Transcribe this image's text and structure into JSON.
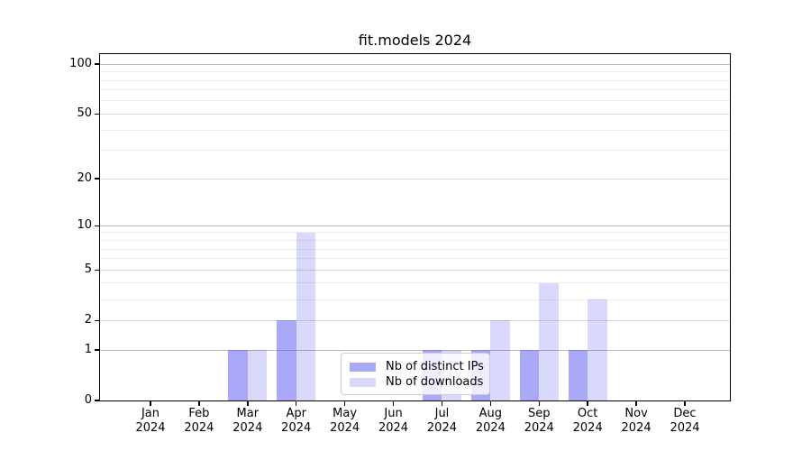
{
  "title": "fit.models 2024",
  "legend": {
    "items": [
      {
        "label": "Nb of distinct IPs",
        "series": "ips"
      },
      {
        "label": "Nb of downloads",
        "series": "downloads"
      }
    ]
  },
  "colors": {
    "ips_fill": "rgba(80,80,240,0.49)",
    "downloads_fill": "rgba(80,80,240,0.22)",
    "ips_solid": "#a9a9f8",
    "downloads_solid": "#d8d8fa",
    "grid_strong": "#b8b8b8",
    "grid_medium": "#d9d9d9",
    "grid_light": "#ececec",
    "axis": "#000000"
  },
  "chart_data": {
    "type": "bar",
    "title": "fit.models 2024",
    "categories": [
      "Jan 2024",
      "Feb 2024",
      "Mar 2024",
      "Apr 2024",
      "May 2024",
      "Jun 2024",
      "Jul 2024",
      "Aug 2024",
      "Sep 2024",
      "Oct 2024",
      "Nov 2024",
      "Dec 2024"
    ],
    "series": [
      {
        "name": "Nb of distinct IPs",
        "values": [
          0,
          0,
          1,
          2,
          0,
          0,
          1,
          1,
          1,
          1,
          0,
          0
        ]
      },
      {
        "name": "Nb of downloads",
        "values": [
          0,
          0,
          1,
          9,
          0,
          0,
          1,
          2,
          4,
          3,
          0,
          0
        ]
      }
    ],
    "xlabel": "",
    "ylabel": "",
    "y_scale": "log1p",
    "y_tick_values": [
      0,
      1,
      2,
      5,
      10,
      20,
      50,
      100
    ],
    "y_tick_labels": [
      "0",
      "1",
      "2",
      "5",
      "10",
      "20",
      "50",
      "100"
    ],
    "y_gridlines_strong": [
      1,
      10,
      100
    ],
    "y_gridlines_medium": [
      2,
      5,
      20,
      50
    ],
    "y_gridlines_minor": [
      3,
      4,
      6,
      7,
      8,
      9,
      30,
      40,
      60,
      70,
      80,
      90
    ],
    "ylim": [
      0,
      115
    ],
    "grid": true,
    "legend_position": "lower-center"
  }
}
